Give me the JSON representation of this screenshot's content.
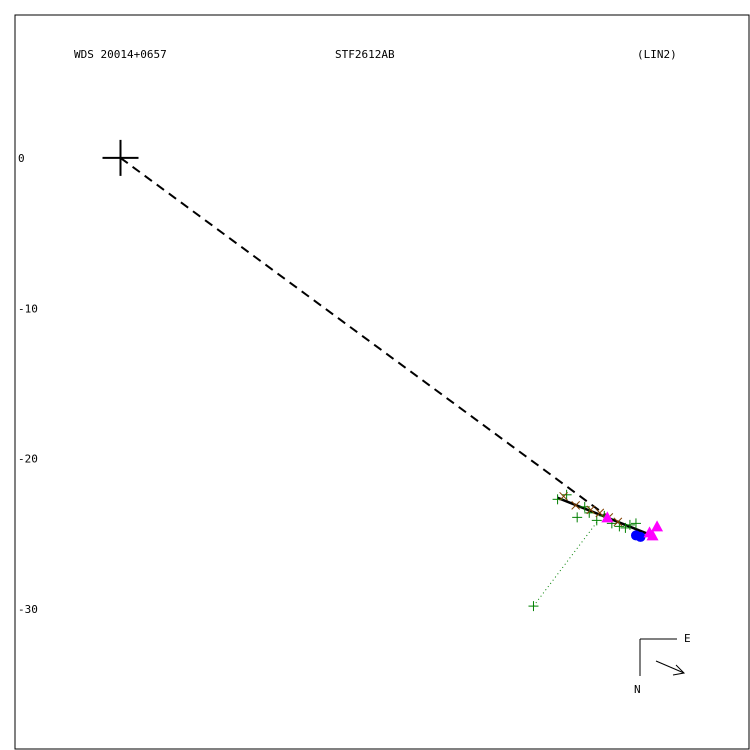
{
  "header": {
    "wds_id": "WDS 20014+0657",
    "discoverer": "STF2612AB",
    "method": "(LIN2)"
  },
  "compass": {
    "east_label": "E",
    "north_label": "N"
  },
  "chart_data": {
    "type": "scatter",
    "title": "",
    "xlabel": "",
    "ylabel": "",
    "y_ticks": [
      0,
      -10,
      -20,
      -30
    ],
    "y_tick_labels": [
      "0",
      "-10",
      "-20",
      "-30"
    ],
    "xlim": [
      -7,
      41.7
    ],
    "ylim": [
      -39.3,
      9.5
    ],
    "primary": {
      "x": 0,
      "y": 0
    },
    "linear_fit": {
      "x": [
        29,
        35.5
      ],
      "y": [
        -22.6,
        -25.2
      ]
    },
    "projection_line": {
      "from": {
        "x": 0,
        "y": 0
      },
      "to": {
        "x": 32.8,
        "y": -24.2
      }
    },
    "series": [
      {
        "marker": "plus",
        "color": "#008000",
        "x": [
          29,
          29.6,
          30.3,
          30.8,
          31.1,
          31.6,
          32.1,
          32.6,
          33.1,
          33.5,
          33.8,
          34.2,
          27.4
        ],
        "y": [
          -22.7,
          -22.4,
          -23.9,
          -23.2,
          -23.6,
          -24.1,
          -23.8,
          -24.3,
          -24.5,
          -24.6,
          -24.4,
          -24.3,
          -29.8
        ]
      },
      {
        "marker": "x",
        "color": "#804000",
        "x": [
          29.4,
          30.2,
          31.2,
          31.8,
          32.4,
          33
        ],
        "y": [
          -22.5,
          -23.1,
          -23.4,
          -23.6,
          -23.9,
          -24.2
        ]
      },
      {
        "marker": "circle",
        "color": "#0000ff",
        "x": [
          34.2,
          34.5
        ],
        "y": [
          -25.1,
          -25.2
        ]
      },
      {
        "marker": "triangle",
        "color": "#ff00ff",
        "x": [
          32.3,
          35.1,
          35.3,
          35.6
        ],
        "y": [
          -23.9,
          -24.9,
          -25.1,
          -24.5
        ]
      }
    ],
    "residual_lines": [
      {
        "from": {
          "x": 27.4,
          "y": -29.8
        },
        "to": {
          "x": 31.7,
          "y": -24.1
        }
      }
    ]
  }
}
